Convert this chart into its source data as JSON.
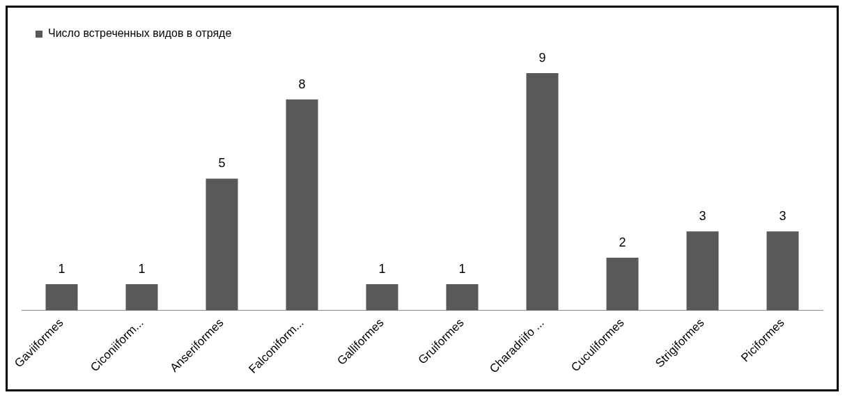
{
  "chart_data": {
    "type": "bar",
    "categories": [
      "Gaviiformes",
      "Ciconiiform...",
      "Anseriformes",
      "Falconiform...",
      "Galliformes",
      "Gruiformes",
      "Charadriifo ...",
      "Cuculiformes",
      "Strigiformes",
      "Piciformes"
    ],
    "series": [
      {
        "name": "Число встреченных видов в отряде",
        "color": "#595959",
        "values": [
          1,
          1,
          5,
          8,
          1,
          1,
          9,
          2,
          3,
          3
        ]
      }
    ],
    "data_labels": true,
    "legend": "top left",
    "grid": false,
    "tick_labels": "x"
  }
}
